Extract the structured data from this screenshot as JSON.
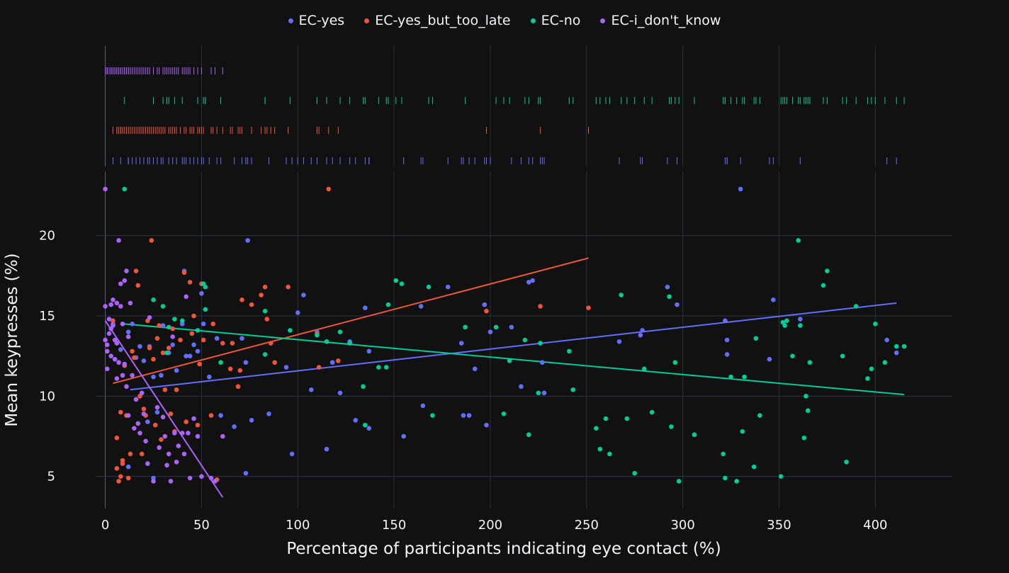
{
  "colors": {
    "background": "#111111",
    "grid": "#283442",
    "text": "#f2f5fa",
    "EC-yes": "#636efa",
    "EC-yes_but_too_late": "#ef553b",
    "EC-no": "#00cc96",
    "EC-i_don't_know": "#ab63fa"
  },
  "chart_data": {
    "type": "scatter",
    "title": "",
    "xlabel": "Percentage of participants indicating eye contact (%)",
    "ylabel": "Mean keypresses (%)",
    "xlim": [
      -5,
      440
    ],
    "ylim": [
      3.0,
      24.0
    ],
    "xticks": [
      0,
      50,
      100,
      150,
      200,
      250,
      300,
      350,
      400
    ],
    "yticks": [
      5,
      10,
      15,
      20
    ],
    "grid": true,
    "legend_position": "top-center",
    "marginal": "rug",
    "trendline": "ols",
    "series": [
      {
        "name": "EC-yes",
        "points": [
          [
            4,
            14.5
          ],
          [
            8,
            12.9
          ],
          [
            12,
            14.0
          ],
          [
            14,
            14.5
          ],
          [
            16,
            12.4
          ],
          [
            18,
            13.1
          ],
          [
            20,
            12.2
          ],
          [
            23,
            13.1
          ],
          [
            25,
            11.2
          ],
          [
            27,
            9.0
          ],
          [
            29,
            11.3
          ],
          [
            30,
            14.4
          ],
          [
            33,
            12.7
          ],
          [
            35,
            13.2
          ],
          [
            37,
            11.6
          ],
          [
            40,
            14.5
          ],
          [
            42,
            12.5
          ],
          [
            44,
            12.5
          ],
          [
            46,
            13.2
          ],
          [
            48,
            12.8
          ],
          [
            50,
            16.4
          ],
          [
            51,
            14.5
          ],
          [
            54,
            11.2
          ],
          [
            58,
            13.6
          ],
          [
            60,
            8.8
          ],
          [
            67,
            8.1
          ],
          [
            71,
            13.6
          ],
          [
            73,
            12.1
          ],
          [
            74,
            19.7
          ],
          [
            76,
            8.5
          ],
          [
            85,
            8.9
          ],
          [
            94,
            11.8
          ],
          [
            97,
            6.4
          ],
          [
            100,
            15.2
          ],
          [
            103,
            16.3
          ],
          [
            107,
            10.4
          ],
          [
            110,
            14.0
          ],
          [
            115,
            6.7
          ],
          [
            118,
            12.1
          ],
          [
            122,
            10.2
          ],
          [
            127,
            13.4
          ],
          [
            130,
            8.5
          ],
          [
            135,
            15.5
          ],
          [
            137,
            12.8
          ],
          [
            137,
            8.0
          ],
          [
            155,
            7.5
          ],
          [
            164,
            15.6
          ],
          [
            165,
            9.4
          ],
          [
            178,
            16.8
          ],
          [
            185,
            13.3
          ],
          [
            186,
            8.8
          ],
          [
            189,
            8.8
          ],
          [
            192,
            11.7
          ],
          [
            197,
            15.7
          ],
          [
            198,
            8.2
          ],
          [
            200,
            14.0
          ],
          [
            211,
            14.3
          ],
          [
            216,
            10.6
          ],
          [
            220,
            17.1
          ],
          [
            222,
            17.2
          ],
          [
            226,
            13.3
          ],
          [
            227,
            12.1
          ],
          [
            228,
            10.2
          ],
          [
            267,
            13.4
          ],
          [
            278,
            13.8
          ],
          [
            279,
            14.1
          ],
          [
            292,
            16.8
          ],
          [
            297,
            15.7
          ],
          [
            322,
            14.7
          ],
          [
            323,
            12.6
          ],
          [
            323,
            13.5
          ],
          [
            330,
            22.9
          ],
          [
            345,
            12.3
          ],
          [
            347,
            16.0
          ],
          [
            361,
            14.8
          ],
          [
            406,
            13.5
          ],
          [
            411,
            12.7
          ],
          [
            73,
            5.2
          ],
          [
            41,
            17.8
          ],
          [
            25,
            4.9
          ],
          [
            12,
            5.6
          ],
          [
            22,
            8.4
          ]
        ],
        "trend": [
          [
            13,
            10.4
          ],
          [
            411,
            15.8
          ]
        ]
      },
      {
        "name": "EC-yes_but_too_late",
        "points": [
          [
            4,
            14.7
          ],
          [
            6,
            7.4
          ],
          [
            7,
            4.7
          ],
          [
            8,
            5.0
          ],
          [
            9,
            6.0
          ],
          [
            10,
            11.9
          ],
          [
            11,
            8.8
          ],
          [
            12,
            4.9
          ],
          [
            13,
            6.4
          ],
          [
            14,
            12.8
          ],
          [
            15,
            12.4
          ],
          [
            16,
            17.8
          ],
          [
            17,
            16.9
          ],
          [
            18,
            10.0
          ],
          [
            19,
            6.4
          ],
          [
            20,
            9.2
          ],
          [
            21,
            8.8
          ],
          [
            22,
            14.7
          ],
          [
            23,
            13.0
          ],
          [
            24,
            19.7
          ],
          [
            25,
            12.3
          ],
          [
            26,
            8.2
          ],
          [
            27,
            13.6
          ],
          [
            28,
            14.4
          ],
          [
            29,
            7.3
          ],
          [
            30,
            12.7
          ],
          [
            31,
            10.4
          ],
          [
            33,
            13.0
          ],
          [
            34,
            8.9
          ],
          [
            35,
            14.2
          ],
          [
            36,
            7.8
          ],
          [
            37,
            10.4
          ],
          [
            39,
            13.5
          ],
          [
            41,
            17.7
          ],
          [
            42,
            8.4
          ],
          [
            44,
            17.1
          ],
          [
            45,
            13.9
          ],
          [
            46,
            15.0
          ],
          [
            48,
            8.2
          ],
          [
            49,
            12.0
          ],
          [
            50,
            17.0
          ],
          [
            51,
            13.5
          ],
          [
            55,
            8.8
          ],
          [
            56,
            14.5
          ],
          [
            58,
            4.8
          ],
          [
            61,
            13.3
          ],
          [
            65,
            11.7
          ],
          [
            66,
            13.3
          ],
          [
            69,
            10.6
          ],
          [
            70,
            11.6
          ],
          [
            71,
            16.0
          ],
          [
            76,
            15.7
          ],
          [
            81,
            16.3
          ],
          [
            83,
            16.8
          ],
          [
            84,
            14.8
          ],
          [
            86,
            13.3
          ],
          [
            88,
            12.1
          ],
          [
            95,
            16.8
          ],
          [
            110,
            13.9
          ],
          [
            111,
            11.8
          ],
          [
            116,
            22.9
          ],
          [
            121,
            12.2
          ],
          [
            198,
            15.3
          ],
          [
            226,
            15.6
          ],
          [
            251,
            15.5
          ],
          [
            6,
            5.5
          ],
          [
            9,
            5.8
          ],
          [
            8,
            9.0
          ]
        ],
        "trend": [
          [
            4,
            10.8
          ],
          [
            251,
            18.6
          ]
        ]
      },
      {
        "name": "EC-no",
        "points": [
          [
            10,
            22.9
          ],
          [
            25,
            16.0
          ],
          [
            30,
            15.6
          ],
          [
            32,
            12.7
          ],
          [
            33,
            14.3
          ],
          [
            36,
            14.8
          ],
          [
            40,
            14.7
          ],
          [
            48,
            14.1
          ],
          [
            51,
            17.0
          ],
          [
            52,
            15.4
          ],
          [
            52,
            16.8
          ],
          [
            60,
            12.1
          ],
          [
            83,
            15.3
          ],
          [
            83,
            12.6
          ],
          [
            96,
            14.1
          ],
          [
            110,
            13.8
          ],
          [
            115,
            13.4
          ],
          [
            122,
            14.0
          ],
          [
            127,
            13.3
          ],
          [
            134,
            10.6
          ],
          [
            135,
            8.2
          ],
          [
            142,
            11.8
          ],
          [
            146,
            11.8
          ],
          [
            147,
            15.7
          ],
          [
            151,
            17.2
          ],
          [
            154,
            17.0
          ],
          [
            168,
            16.8
          ],
          [
            170,
            8.8
          ],
          [
            187,
            14.3
          ],
          [
            203,
            14.3
          ],
          [
            207,
            8.9
          ],
          [
            210,
            12.2
          ],
          [
            218,
            13.5
          ],
          [
            220,
            7.6
          ],
          [
            225,
            10.2
          ],
          [
            226,
            13.3
          ],
          [
            241,
            12.8
          ],
          [
            243,
            10.4
          ],
          [
            255,
            8.0
          ],
          [
            257,
            6.7
          ],
          [
            260,
            8.6
          ],
          [
            262,
            6.4
          ],
          [
            268,
            16.3
          ],
          [
            271,
            8.6
          ],
          [
            275,
            5.2
          ],
          [
            280,
            11.7
          ],
          [
            284,
            9.0
          ],
          [
            293,
            16.2
          ],
          [
            294,
            8.1
          ],
          [
            296,
            12.1
          ],
          [
            298,
            4.7
          ],
          [
            306,
            7.6
          ],
          [
            321,
            6.4
          ],
          [
            322,
            4.9
          ],
          [
            325,
            11.2
          ],
          [
            328,
            4.7
          ],
          [
            331,
            7.8
          ],
          [
            332,
            11.2
          ],
          [
            337,
            5.6
          ],
          [
            338,
            13.6
          ],
          [
            340,
            8.8
          ],
          [
            351,
            5.0
          ],
          [
            352,
            14.6
          ],
          [
            353,
            14.4
          ],
          [
            354,
            14.7
          ],
          [
            357,
            12.5
          ],
          [
            360,
            19.7
          ],
          [
            361,
            14.4
          ],
          [
            363,
            7.4
          ],
          [
            364,
            10.0
          ],
          [
            365,
            9.1
          ],
          [
            366,
            12.1
          ],
          [
            373,
            16.9
          ],
          [
            375,
            17.8
          ],
          [
            383,
            12.5
          ],
          [
            385,
            5.9
          ],
          [
            390,
            15.6
          ],
          [
            396,
            11.1
          ],
          [
            398,
            11.7
          ],
          [
            400,
            14.5
          ],
          [
            405,
            12.1
          ],
          [
            411,
            13.1
          ],
          [
            415,
            13.1
          ]
        ],
        "trend": [
          [
            10,
            14.5
          ],
          [
            415,
            10.1
          ]
        ]
      },
      {
        "name": "EC-i_don't_know",
        "points": [
          [
            0,
            22.9
          ],
          [
            0,
            15.6
          ],
          [
            0,
            13.5
          ],
          [
            1,
            13.2
          ],
          [
            1,
            12.8
          ],
          [
            1,
            11.7
          ],
          [
            2,
            14.8
          ],
          [
            2,
            13.9
          ],
          [
            3,
            12.5
          ],
          [
            3,
            15.7
          ],
          [
            4,
            16.0
          ],
          [
            4,
            14.4
          ],
          [
            5,
            13.5
          ],
          [
            5,
            12.3
          ],
          [
            6,
            15.8
          ],
          [
            6,
            11.1
          ],
          [
            7,
            19.7
          ],
          [
            7,
            12.1
          ],
          [
            8,
            17.0
          ],
          [
            8,
            15.6
          ],
          [
            9,
            14.5
          ],
          [
            9,
            11.3
          ],
          [
            10,
            17.2
          ],
          [
            10,
            12.0
          ],
          [
            11,
            17.8
          ],
          [
            11,
            10.6
          ],
          [
            12,
            13.7
          ],
          [
            12,
            8.8
          ],
          [
            13,
            15.8
          ],
          [
            14,
            11.3
          ],
          [
            15,
            8.0
          ],
          [
            16,
            9.8
          ],
          [
            17,
            8.3
          ],
          [
            18,
            7.7
          ],
          [
            19,
            10.2
          ],
          [
            20,
            8.9
          ],
          [
            21,
            7.2
          ],
          [
            22,
            5.8
          ],
          [
            23,
            14.9
          ],
          [
            25,
            4.7
          ],
          [
            27,
            9.3
          ],
          [
            28,
            6.8
          ],
          [
            30,
            8.7
          ],
          [
            31,
            7.5
          ],
          [
            32,
            5.7
          ],
          [
            33,
            6.4
          ],
          [
            34,
            4.7
          ],
          [
            35,
            13.7
          ],
          [
            36,
            7.7
          ],
          [
            37,
            5.9
          ],
          [
            38,
            6.9
          ],
          [
            40,
            7.7
          ],
          [
            41,
            6.4
          ],
          [
            42,
            16.2
          ],
          [
            43,
            7.7
          ],
          [
            44,
            4.9
          ],
          [
            46,
            8.6
          ],
          [
            48,
            7.5
          ],
          [
            50,
            5.0
          ],
          [
            55,
            4.9
          ],
          [
            57,
            4.7
          ],
          [
            61,
            7.5
          ],
          [
            3,
            14.2
          ],
          [
            6,
            13.3
          ]
        ],
        "trend": [
          [
            0,
            14.7
          ],
          [
            61,
            3.7
          ]
        ]
      }
    ]
  }
}
